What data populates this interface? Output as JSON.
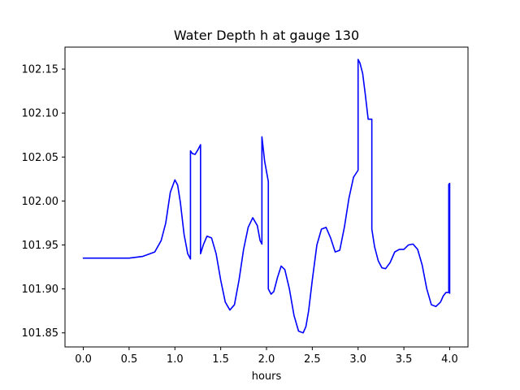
{
  "chart_data": {
    "type": "line",
    "title": "Water Depth h at gauge 130",
    "xlabel": "hours",
    "ylabel": "",
    "xlim": [
      -0.2,
      4.2
    ],
    "ylim": [
      101.834,
      102.175
    ],
    "x_ticks": [
      0.0,
      0.5,
      1.0,
      1.5,
      2.0,
      2.5,
      3.0,
      3.5,
      4.0
    ],
    "x_tick_labels": [
      "0.0",
      "0.5",
      "1.0",
      "1.5",
      "2.0",
      "2.5",
      "3.0",
      "3.5",
      "4.0"
    ],
    "y_ticks": [
      101.85,
      101.9,
      101.95,
      102.0,
      102.05,
      102.1,
      102.15
    ],
    "y_tick_labels": [
      "101.85",
      "101.90",
      "101.95",
      "102.00",
      "102.05",
      "102.10",
      "102.15"
    ],
    "grid": false,
    "legend": "none",
    "series": [
      {
        "color": "#0000ff",
        "x": [
          0.0,
          0.3,
          0.5,
          0.65,
          0.78,
          0.85,
          0.9,
          0.95,
          1.0,
          1.03,
          1.06,
          1.1,
          1.14,
          1.17,
          1.17,
          1.19,
          1.22,
          1.25,
          1.28,
          1.28,
          1.31,
          1.35,
          1.4,
          1.45,
          1.5,
          1.55,
          1.6,
          1.65,
          1.7,
          1.75,
          1.8,
          1.85,
          1.9,
          1.93,
          1.95,
          1.95,
          1.98,
          2.02,
          2.02,
          2.05,
          2.08,
          2.12,
          2.16,
          2.2,
          2.25,
          2.3,
          2.35,
          2.4,
          2.43,
          2.46,
          2.5,
          2.55,
          2.6,
          2.65,
          2.7,
          2.75,
          2.8,
          2.85,
          2.9,
          2.95,
          3.0,
          3.0,
          3.02,
          3.05,
          3.08,
          3.11,
          3.15,
          3.15,
          3.18,
          3.22,
          3.26,
          3.3,
          3.35,
          3.4,
          3.45,
          3.5,
          3.55,
          3.6,
          3.65,
          3.7,
          3.75,
          3.8,
          3.85,
          3.9,
          3.93,
          3.96,
          3.99,
          3.99,
          4.0,
          4.0
        ],
        "y": [
          101.935,
          101.935,
          101.935,
          101.937,
          101.942,
          101.955,
          101.975,
          102.01,
          102.024,
          102.018,
          101.998,
          101.962,
          101.94,
          101.934,
          102.057,
          102.054,
          102.053,
          102.058,
          102.064,
          101.94,
          101.95,
          101.96,
          101.958,
          101.94,
          101.91,
          101.885,
          101.876,
          101.882,
          101.91,
          101.945,
          101.97,
          101.981,
          101.972,
          101.955,
          101.951,
          102.073,
          102.045,
          102.022,
          101.9,
          101.894,
          101.897,
          101.913,
          101.926,
          101.922,
          101.9,
          101.87,
          101.852,
          101.85,
          101.857,
          101.875,
          101.91,
          101.95,
          101.968,
          101.97,
          101.958,
          101.942,
          101.944,
          101.97,
          102.003,
          102.027,
          102.035,
          102.161,
          102.157,
          102.145,
          102.12,
          102.093,
          102.093,
          101.968,
          101.948,
          101.932,
          101.924,
          101.923,
          101.93,
          101.942,
          101.945,
          101.945,
          101.95,
          101.951,
          101.945,
          101.927,
          101.9,
          101.882,
          101.88,
          101.885,
          101.892,
          101.896,
          101.896,
          102.019,
          102.02,
          101.895
        ]
      }
    ]
  }
}
